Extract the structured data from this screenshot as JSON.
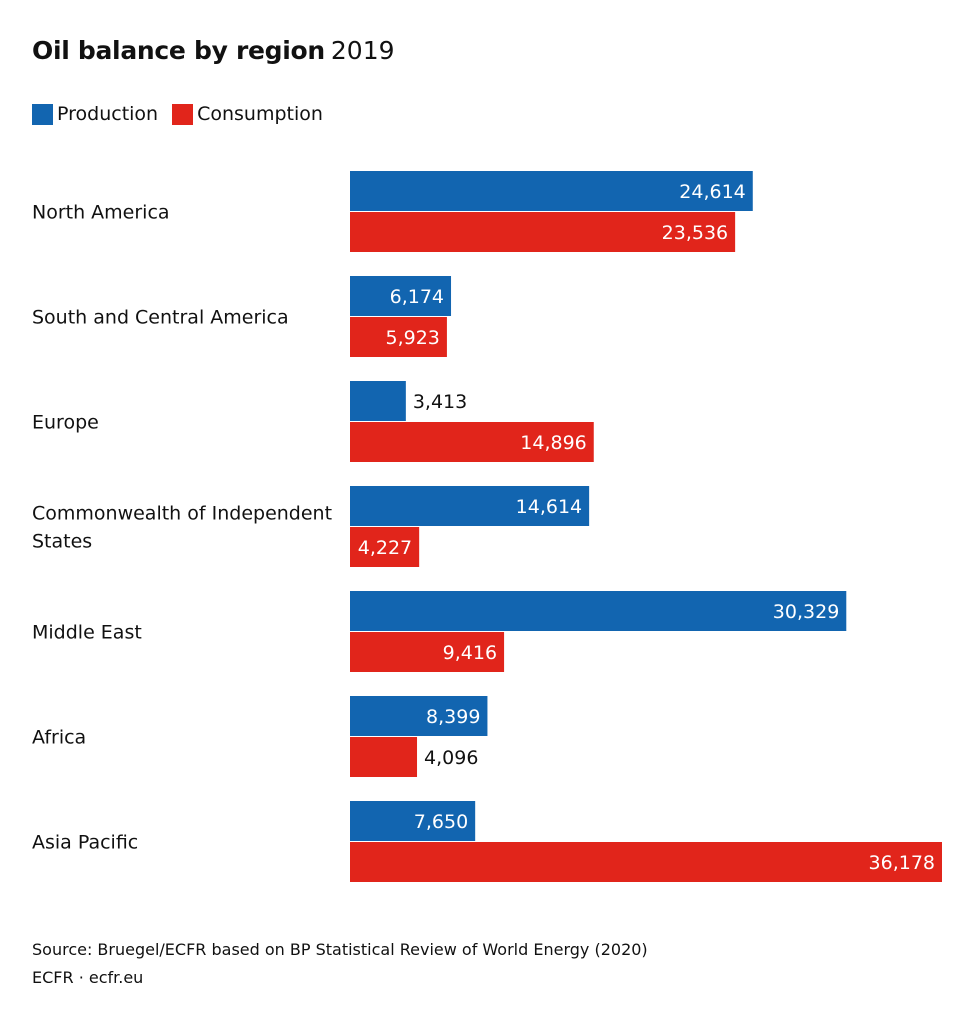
{
  "chart_data": {
    "type": "bar",
    "orientation": "horizontal",
    "title": "Oil balance by region",
    "subtitle": "2019",
    "legend_placement": "top-left",
    "grid": false,
    "xlim": [
      0,
      36178
    ],
    "categories": [
      "North America",
      "South and Central America",
      "Europe",
      "Commonwealth of Independent States",
      "Middle East",
      "Africa",
      "Asia Pacific"
    ],
    "series": [
      {
        "name": "Production",
        "color": "#1265b0",
        "values": [
          24614,
          6174,
          3413,
          14614,
          30329,
          8399,
          7650
        ],
        "labels": [
          "24,614",
          "6,174",
          "3,413",
          "14,614",
          "30,329",
          "8,399",
          "7,650"
        ]
      },
      {
        "name": "Consumption",
        "color": "#e1251b",
        "values": [
          23536,
          5923,
          14896,
          4227,
          9416,
          4096,
          36178
        ],
        "labels": [
          "23,536",
          "5,923",
          "14,896",
          "4,227",
          "9,416",
          "4,096",
          "36,178"
        ]
      }
    ]
  },
  "footer": {
    "source": "Source: Bruegel/ECFR based on BP Statistical Review of World Energy (2020)",
    "credit": "ECFR · ecfr.eu"
  }
}
